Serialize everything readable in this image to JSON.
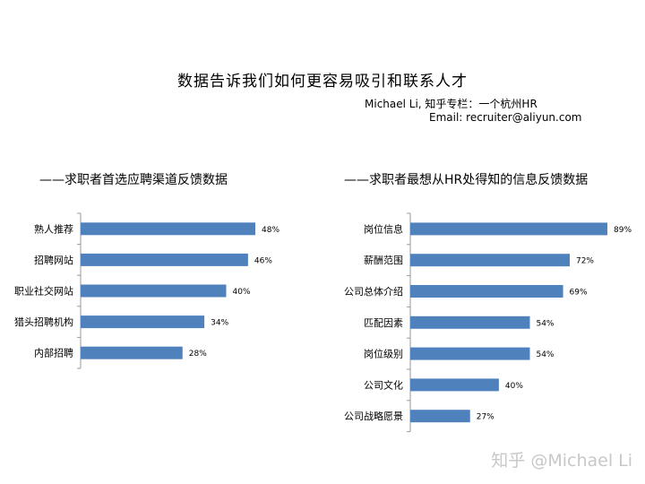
{
  "header": {
    "title": "数据告诉我们如何更容易吸引和联系人才",
    "author_line": "Michael Li,  知乎专栏：一个杭州HR",
    "email_line": "Email: recruiter@aliyun.com"
  },
  "watermark": "知乎 @Michael Li",
  "colors": {
    "bar": "#4f81bd",
    "axis": "#9a9a9a"
  },
  "chart_data": [
    {
      "type": "bar",
      "orientation": "horizontal",
      "title": "——求职者首选应聘渠道反馈数据",
      "categories": [
        "熟人推荐",
        "招聘网站",
        "职业社交网站",
        "猎头招聘机构",
        "内部招聘"
      ],
      "values": [
        48,
        46,
        40,
        34,
        28
      ],
      "data_labels": [
        "48%",
        "46%",
        "40%",
        "34%",
        "28%"
      ],
      "unit": "%",
      "xlim": [
        0,
        100
      ],
      "grid": false,
      "legend": "none"
    },
    {
      "type": "bar",
      "orientation": "horizontal",
      "title": "——求职者最想从HR处得知的信息反馈数据",
      "categories": [
        "岗位信息",
        "薪酬范围",
        "公司总体介绍",
        "匹配因素",
        "岗位级别",
        "公司文化",
        "公司战略愿景"
      ],
      "values": [
        89,
        72,
        69,
        54,
        54,
        40,
        27
      ],
      "data_labels": [
        "89%",
        "72%",
        "69%",
        "54%",
        "54%",
        "40%",
        "27%"
      ],
      "unit": "%",
      "xlim": [
        0,
        100
      ],
      "grid": false,
      "legend": "none"
    }
  ]
}
